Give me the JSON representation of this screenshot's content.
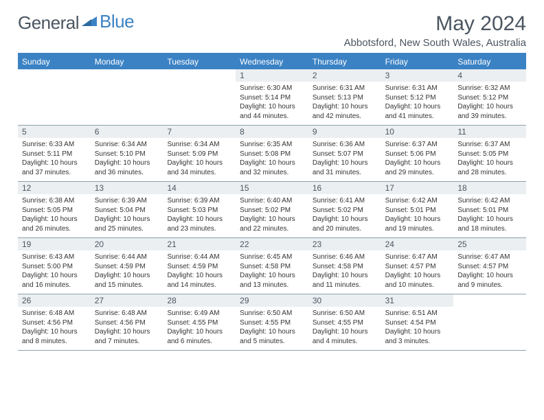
{
  "brand": {
    "part1": "General",
    "part2": "Blue"
  },
  "title": "May 2024",
  "location": "Abbotsford, New South Wales, Australia",
  "colors": {
    "accent": "#3b82c4",
    "text": "#4a5560",
    "daynum_bg": "#eceff1",
    "rule": "#8aa0b0"
  },
  "weekdays": [
    "Sunday",
    "Monday",
    "Tuesday",
    "Wednesday",
    "Thursday",
    "Friday",
    "Saturday"
  ],
  "weeks": [
    [
      null,
      null,
      null,
      {
        "n": "1",
        "sr": "6:30 AM",
        "ss": "5:14 PM",
        "dl": "10 hours and 44 minutes."
      },
      {
        "n": "2",
        "sr": "6:31 AM",
        "ss": "5:13 PM",
        "dl": "10 hours and 42 minutes."
      },
      {
        "n": "3",
        "sr": "6:31 AM",
        "ss": "5:12 PM",
        "dl": "10 hours and 41 minutes."
      },
      {
        "n": "4",
        "sr": "6:32 AM",
        "ss": "5:12 PM",
        "dl": "10 hours and 39 minutes."
      }
    ],
    [
      {
        "n": "5",
        "sr": "6:33 AM",
        "ss": "5:11 PM",
        "dl": "10 hours and 37 minutes."
      },
      {
        "n": "6",
        "sr": "6:34 AM",
        "ss": "5:10 PM",
        "dl": "10 hours and 36 minutes."
      },
      {
        "n": "7",
        "sr": "6:34 AM",
        "ss": "5:09 PM",
        "dl": "10 hours and 34 minutes."
      },
      {
        "n": "8",
        "sr": "6:35 AM",
        "ss": "5:08 PM",
        "dl": "10 hours and 32 minutes."
      },
      {
        "n": "9",
        "sr": "6:36 AM",
        "ss": "5:07 PM",
        "dl": "10 hours and 31 minutes."
      },
      {
        "n": "10",
        "sr": "6:37 AM",
        "ss": "5:06 PM",
        "dl": "10 hours and 29 minutes."
      },
      {
        "n": "11",
        "sr": "6:37 AM",
        "ss": "5:05 PM",
        "dl": "10 hours and 28 minutes."
      }
    ],
    [
      {
        "n": "12",
        "sr": "6:38 AM",
        "ss": "5:05 PM",
        "dl": "10 hours and 26 minutes."
      },
      {
        "n": "13",
        "sr": "6:39 AM",
        "ss": "5:04 PM",
        "dl": "10 hours and 25 minutes."
      },
      {
        "n": "14",
        "sr": "6:39 AM",
        "ss": "5:03 PM",
        "dl": "10 hours and 23 minutes."
      },
      {
        "n": "15",
        "sr": "6:40 AM",
        "ss": "5:02 PM",
        "dl": "10 hours and 22 minutes."
      },
      {
        "n": "16",
        "sr": "6:41 AM",
        "ss": "5:02 PM",
        "dl": "10 hours and 20 minutes."
      },
      {
        "n": "17",
        "sr": "6:42 AM",
        "ss": "5:01 PM",
        "dl": "10 hours and 19 minutes."
      },
      {
        "n": "18",
        "sr": "6:42 AM",
        "ss": "5:01 PM",
        "dl": "10 hours and 18 minutes."
      }
    ],
    [
      {
        "n": "19",
        "sr": "6:43 AM",
        "ss": "5:00 PM",
        "dl": "10 hours and 16 minutes."
      },
      {
        "n": "20",
        "sr": "6:44 AM",
        "ss": "4:59 PM",
        "dl": "10 hours and 15 minutes."
      },
      {
        "n": "21",
        "sr": "6:44 AM",
        "ss": "4:59 PM",
        "dl": "10 hours and 14 minutes."
      },
      {
        "n": "22",
        "sr": "6:45 AM",
        "ss": "4:58 PM",
        "dl": "10 hours and 13 minutes."
      },
      {
        "n": "23",
        "sr": "6:46 AM",
        "ss": "4:58 PM",
        "dl": "10 hours and 11 minutes."
      },
      {
        "n": "24",
        "sr": "6:47 AM",
        "ss": "4:57 PM",
        "dl": "10 hours and 10 minutes."
      },
      {
        "n": "25",
        "sr": "6:47 AM",
        "ss": "4:57 PM",
        "dl": "10 hours and 9 minutes."
      }
    ],
    [
      {
        "n": "26",
        "sr": "6:48 AM",
        "ss": "4:56 PM",
        "dl": "10 hours and 8 minutes."
      },
      {
        "n": "27",
        "sr": "6:48 AM",
        "ss": "4:56 PM",
        "dl": "10 hours and 7 minutes."
      },
      {
        "n": "28",
        "sr": "6:49 AM",
        "ss": "4:55 PM",
        "dl": "10 hours and 6 minutes."
      },
      {
        "n": "29",
        "sr": "6:50 AM",
        "ss": "4:55 PM",
        "dl": "10 hours and 5 minutes."
      },
      {
        "n": "30",
        "sr": "6:50 AM",
        "ss": "4:55 PM",
        "dl": "10 hours and 4 minutes."
      },
      {
        "n": "31",
        "sr": "6:51 AM",
        "ss": "4:54 PM",
        "dl": "10 hours and 3 minutes."
      },
      null
    ]
  ],
  "labels": {
    "sunrise": "Sunrise: ",
    "sunset": "Sunset: ",
    "daylight": "Daylight: "
  }
}
